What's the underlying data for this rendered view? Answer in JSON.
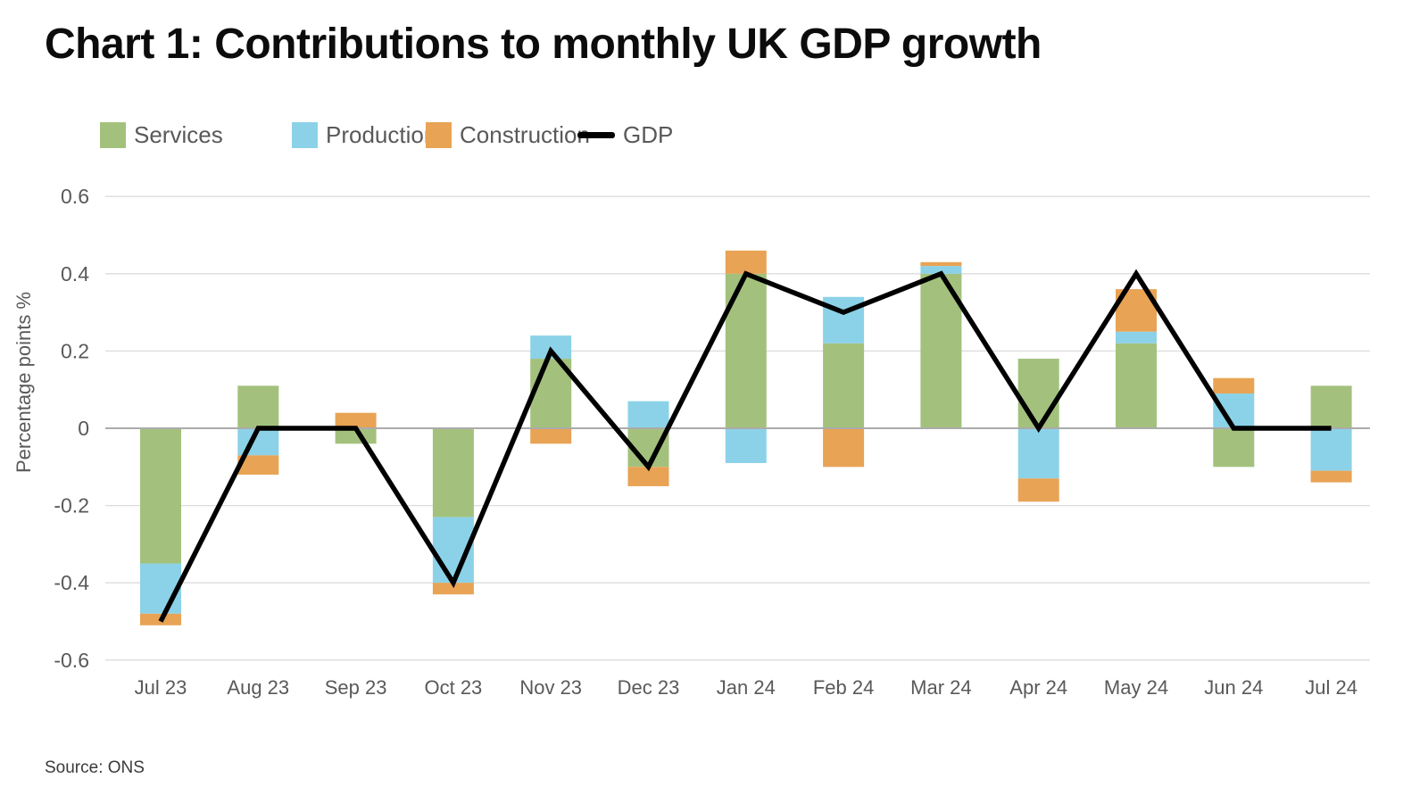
{
  "title": "Chart 1: Contributions to monthly UK GDP growth",
  "y_axis_title": "Percentage points %",
  "source": "Source: ONS",
  "legend": {
    "services_label": "Services",
    "production_label": "Production",
    "construction_label": "Construction",
    "gdp_label": "GDP"
  },
  "colors": {
    "services": "#a3c17c",
    "production": "#8bd2e8",
    "construction": "#e8a355",
    "gdp_line": "#000000",
    "gridline": "#dcdcdc",
    "zero_line": "#ababab",
    "axis_text": "#595959"
  },
  "chart_data": {
    "type": "bar",
    "subtype": "stacked-bars-with-line-overlay",
    "title": "Chart 1: Contributions to monthly UK GDP growth",
    "xlabel": "",
    "ylabel": "Percentage points %",
    "ylim": [
      -0.6,
      0.6
    ],
    "yticks": [
      "0.6",
      "0.4",
      "0.2",
      "0",
      "-0.2",
      "-0.4",
      "-0.6"
    ],
    "ytick_values": [
      0.6,
      0.4,
      0.2,
      0,
      -0.2,
      -0.4,
      -0.6
    ],
    "grid": true,
    "legend_position": "top",
    "categories": [
      "Jul 23",
      "Aug 23",
      "Sep 23",
      "Oct 23",
      "Nov 23",
      "Dec 23",
      "Jan 24",
      "Feb 24",
      "Mar 24",
      "Apr 24",
      "May 24",
      "Jun 24",
      "Jul 24"
    ],
    "series": [
      {
        "name": "Services",
        "type": "bar",
        "color": "#a3c17c",
        "values": [
          -0.35,
          0.11,
          -0.04,
          -0.23,
          0.18,
          -0.1,
          0.4,
          0.22,
          0.4,
          0.18,
          0.22,
          -0.1,
          0.11
        ]
      },
      {
        "name": "Production",
        "type": "bar",
        "color": "#8bd2e8",
        "values": [
          -0.13,
          -0.07,
          0.0,
          -0.17,
          0.06,
          0.07,
          -0.09,
          0.12,
          0.02,
          -0.13,
          0.03,
          0.09,
          -0.11
        ]
      },
      {
        "name": "Construction",
        "type": "bar",
        "color": "#e8a355",
        "values": [
          -0.03,
          -0.05,
          0.04,
          -0.03,
          -0.04,
          -0.05,
          0.06,
          -0.1,
          0.01,
          -0.06,
          0.11,
          0.04,
          -0.03
        ]
      },
      {
        "name": "GDP",
        "type": "line",
        "color": "#000000",
        "values": [
          -0.5,
          0.0,
          0.0,
          -0.4,
          0.2,
          -0.1,
          0.4,
          0.3,
          0.4,
          0.0,
          0.4,
          0.0,
          0.0
        ]
      }
    ],
    "source": "Source: ONS"
  }
}
